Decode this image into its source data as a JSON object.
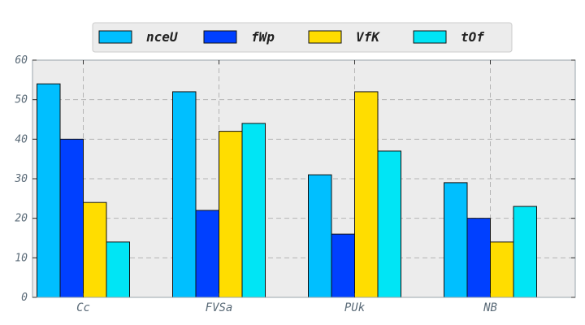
{
  "chart_data": {
    "type": "bar",
    "categories": [
      "Cc",
      "FVSa",
      "PUk",
      "NB"
    ],
    "series": [
      {
        "name": "nceU",
        "color": "#00bfff",
        "values": [
          54,
          52,
          31,
          29
        ]
      },
      {
        "name": "fWp",
        "color": "#0040ff",
        "values": [
          40,
          22,
          16,
          20
        ]
      },
      {
        "name": "VfK",
        "color": "#ffdd00",
        "values": [
          24,
          42,
          52,
          14
        ]
      },
      {
        "name": "tOf",
        "color": "#00e5f5",
        "values": [
          14,
          44,
          37,
          23
        ]
      }
    ],
    "yticks": [
      0,
      10,
      20,
      30,
      40,
      50,
      60
    ],
    "ylim": [
      0,
      60
    ],
    "grid": true,
    "legend": "top-center",
    "background": "#ececec"
  }
}
